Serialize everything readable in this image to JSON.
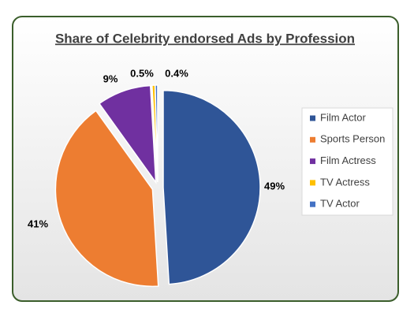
{
  "chart_data": {
    "type": "pie",
    "title": "Share of Celebrity endorsed Ads by Profession",
    "categories": [
      "Film Actor",
      "Sports Person",
      "Film Actress",
      "TV Actress",
      "TV Actor"
    ],
    "values": [
      49,
      41,
      9,
      0.5,
      0.4
    ],
    "value_labels": [
      "49%",
      "41%",
      "9%",
      "0.5%",
      "0.4%"
    ],
    "colors": [
      "#2f5597",
      "#ed7d31",
      "#7030a0",
      "#ffc000",
      "#4472c4"
    ],
    "legend": "right"
  }
}
